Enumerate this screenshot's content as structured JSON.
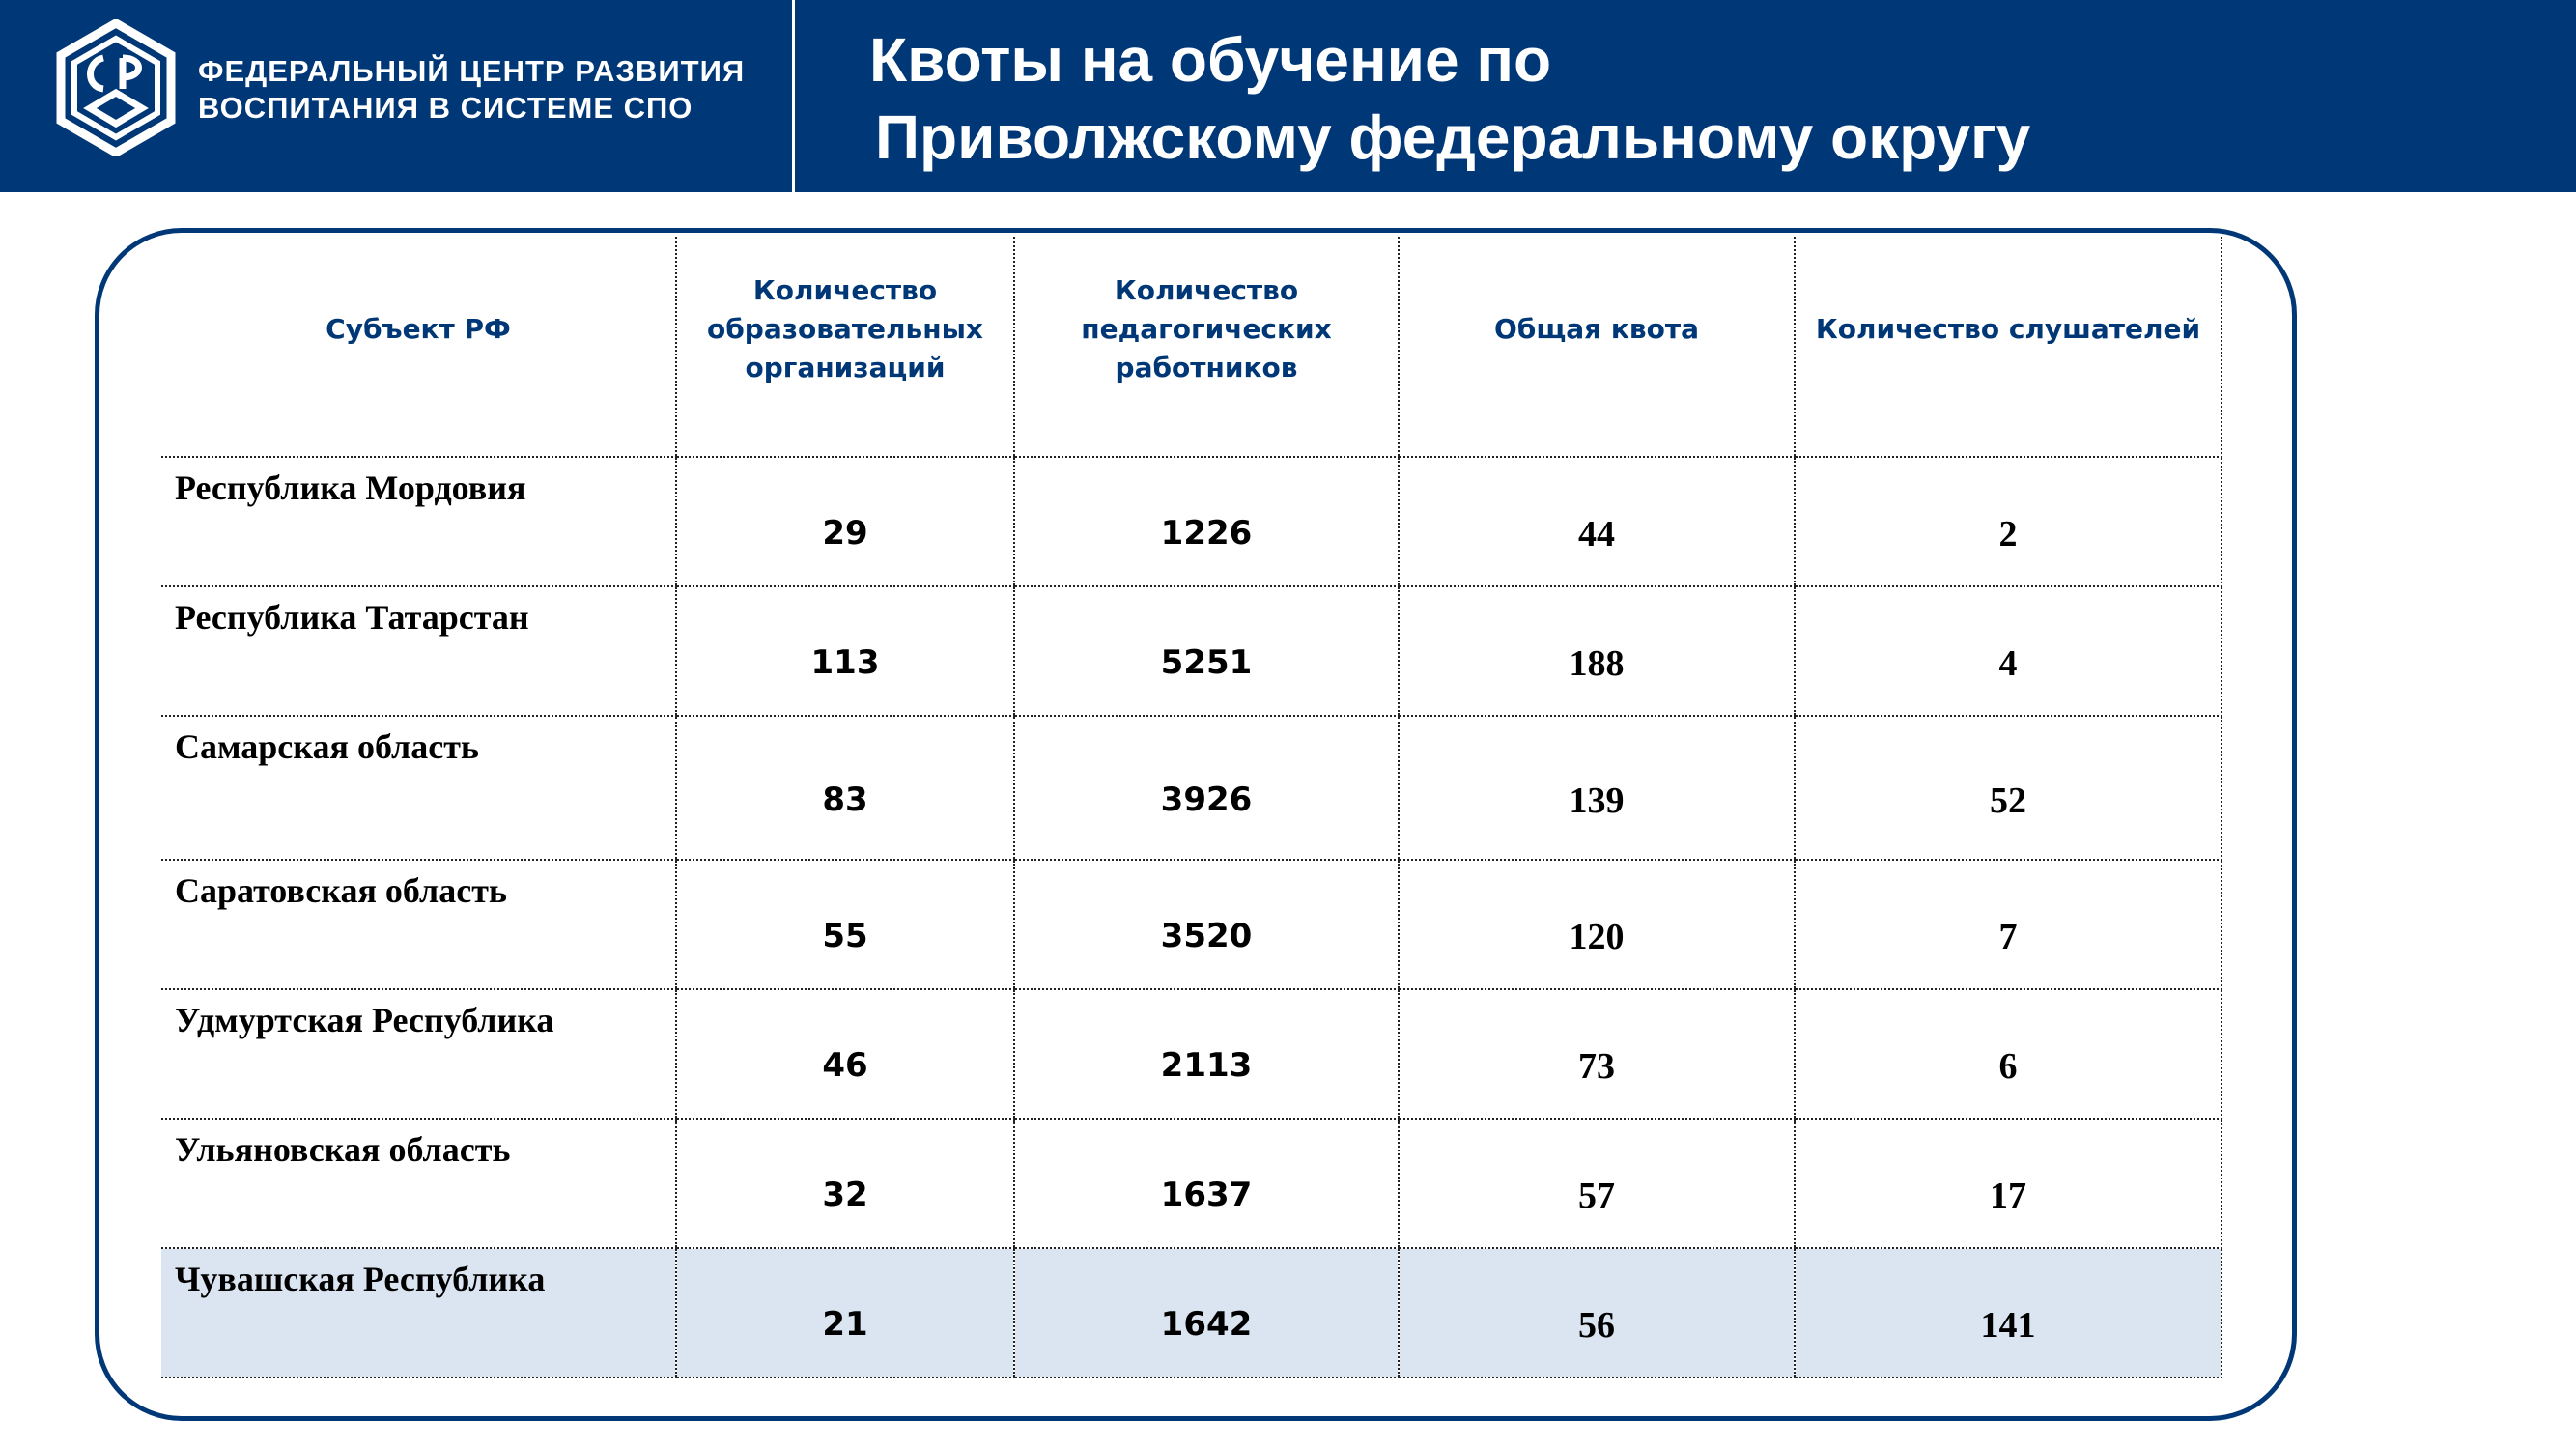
{
  "header": {
    "org_name_line1": "ФЕДЕРАЛЬНЫЙ ЦЕНТР РАЗВИТИЯ",
    "org_name_line2": "ВОСПИТАНИЯ В СИСТЕМЕ СПО",
    "title_line1": "Квоты на обучение по",
    "title_line2": "Приволжскому федеральному округу"
  },
  "colors": {
    "brand": "#003776",
    "highlight_row": "#dbe5f1"
  },
  "table": {
    "headers": {
      "subject": "Субъект РФ",
      "orgs": "Количество образовательных организаций",
      "teachers": "Количество педагогических работников",
      "quota": "Общая квота",
      "listeners": "Количество слушателей"
    },
    "rows": [
      {
        "region": "Республика Мордовия",
        "orgs": "29",
        "teachers": "1226",
        "quota": "44",
        "listeners": "2"
      },
      {
        "region": "Республика Татарстан",
        "orgs": "113",
        "teachers": "5251",
        "quota": "188",
        "listeners": "4"
      },
      {
        "region": "Самарская область",
        "orgs": "83",
        "teachers": "3926",
        "quota": "139",
        "listeners": "52"
      },
      {
        "region": "Саратовская область",
        "orgs": "55",
        "teachers": "3520",
        "quota": "120",
        "listeners": "7"
      },
      {
        "region": "Удмуртская Республика",
        "orgs": "46",
        "teachers": "2113",
        "quota": "73",
        "listeners": "6"
      },
      {
        "region": "Ульяновская область",
        "orgs": "32",
        "teachers": "1637",
        "quota": "57",
        "listeners": "17"
      },
      {
        "region": "Чувашская Республика",
        "orgs": "21",
        "teachers": "1642",
        "quota": "56",
        "listeners": "141"
      }
    ]
  }
}
